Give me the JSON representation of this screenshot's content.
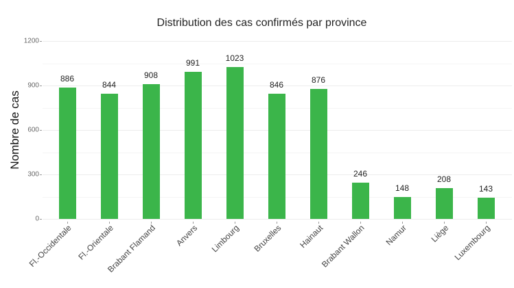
{
  "chart_data": {
    "type": "bar",
    "title": "Distribution des cas confirmés par province",
    "xlabel": "",
    "ylabel": "Nombre de cas",
    "ylim": [
      0,
      1200
    ],
    "yticks": [
      0,
      300,
      600,
      900,
      1200
    ],
    "grid": true,
    "legend": null,
    "bar_color": "#3bb54a",
    "categories": [
      "Fl.-Occidentale",
      "Fl.-Orientale",
      "Brabant Flamand",
      "Anvers",
      "Limbourg",
      "Bruxelles",
      "Hainaut",
      "Brabant Wallon",
      "Namur",
      "Liège",
      "Luxembourg"
    ],
    "values": [
      886,
      844,
      908,
      991,
      1023,
      846,
      876,
      246,
      148,
      208,
      143
    ],
    "data_labels": [
      "886",
      "844",
      "908",
      "991",
      "1023",
      "846",
      "876",
      "246",
      "148",
      "208",
      "143"
    ]
  }
}
